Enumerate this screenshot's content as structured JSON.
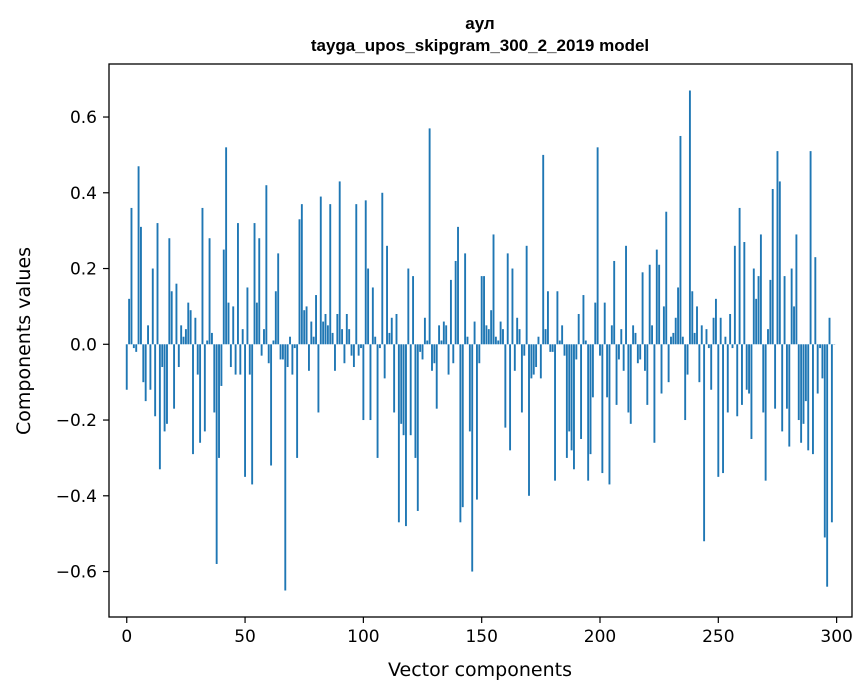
{
  "chart_data": {
    "type": "bar",
    "title": "аул",
    "subtitle": "tayga_upos_skipgram_300_2_2019 model",
    "xlabel": "Vector components",
    "ylabel": "Components values",
    "xlim": [
      -7.5,
      306.5
    ],
    "ylim": [
      -0.72,
      0.74
    ],
    "xticks": [
      0,
      50,
      100,
      150,
      200,
      250,
      300
    ],
    "xtick_labels": [
      "0",
      "50",
      "100",
      "150",
      "200",
      "250",
      "300"
    ],
    "yticks": [
      -0.6,
      -0.4,
      -0.2,
      0.0,
      0.2,
      0.4,
      0.6
    ],
    "ytick_labels": [
      "−0.6",
      "−0.4",
      "−0.2",
      "0.0",
      "0.2",
      "0.4",
      "0.6"
    ],
    "grid": false,
    "bar_color": "#1f77b4",
    "values": [
      -0.12,
      0.12,
      0.36,
      -0.01,
      -0.02,
      0.47,
      0.31,
      -0.1,
      -0.15,
      0.05,
      -0.12,
      0.2,
      -0.19,
      0.32,
      -0.33,
      -0.06,
      -0.23,
      -0.21,
      0.28,
      0.14,
      -0.17,
      0.16,
      -0.06,
      0.05,
      0.02,
      0.04,
      0.11,
      0.09,
      -0.29,
      0.07,
      -0.08,
      -0.26,
      0.36,
      -0.23,
      0.01,
      0.28,
      0.03,
      -0.18,
      -0.58,
      -0.3,
      -0.11,
      0.25,
      0.52,
      0.11,
      -0.06,
      0.1,
      -0.08,
      0.32,
      -0.08,
      0.04,
      -0.35,
      0.15,
      -0.08,
      -0.37,
      0.32,
      0.11,
      0.28,
      -0.03,
      0.04,
      0.42,
      -0.05,
      -0.32,
      0.01,
      0.14,
      0.24,
      -0.04,
      -0.04,
      -0.65,
      -0.06,
      0.02,
      -0.08,
      -0.01,
      -0.3,
      0.33,
      0.37,
      0.09,
      0.1,
      -0.07,
      0.06,
      0.02,
      0.13,
      -0.18,
      0.39,
      0.06,
      0.08,
      0.05,
      0.37,
      0.03,
      -0.07,
      0.08,
      0.43,
      0.04,
      -0.05,
      0.08,
      0.04,
      -0.03,
      -0.06,
      0.37,
      -0.03,
      -0.01,
      -0.2,
      0.38,
      0.2,
      -0.2,
      0.15,
      0.02,
      -0.3,
      -0.01,
      0.4,
      -0.09,
      0.26,
      0.03,
      0.07,
      -0.18,
      0.08,
      -0.47,
      -0.21,
      -0.24,
      -0.48,
      0.2,
      -0.24,
      0.18,
      -0.3,
      -0.44,
      -0.02,
      -0.04,
      0.07,
      0.01,
      0.57,
      -0.07,
      -0.05,
      -0.17,
      0.05,
      0.01,
      0.06,
      0.05,
      -0.08,
      0.17,
      -0.05,
      0.22,
      0.31,
      -0.47,
      -0.43,
      0.24,
      0.02,
      -0.23,
      -0.6,
      0.06,
      -0.41,
      -0.05,
      0.18,
      0.18,
      0.05,
      0.04,
      0.09,
      0.29,
      0.02,
      0.01,
      0.06,
      0.04,
      -0.22,
      0.24,
      -0.28,
      0.2,
      -0.07,
      0.07,
      0.04,
      -0.18,
      -0.03,
      0.26,
      -0.4,
      -0.09,
      -0.08,
      -0.06,
      0.02,
      -0.09,
      0.5,
      0.04,
      0.14,
      -0.02,
      -0.02,
      -0.36,
      0.14,
      0.01,
      0.05,
      -0.03,
      -0.3,
      -0.23,
      -0.28,
      -0.33,
      -0.04,
      0.08,
      -0.25,
      0.13,
      0.01,
      -0.36,
      -0.29,
      -0.14,
      0.11,
      0.52,
      -0.03,
      -0.34,
      0.11,
      -0.14,
      -0.37,
      0.05,
      0.22,
      -0.16,
      -0.04,
      0.04,
      -0.07,
      0.26,
      -0.18,
      -0.21,
      0.05,
      0.03,
      -0.05,
      -0.04,
      0.19,
      -0.07,
      -0.16,
      0.21,
      0.05,
      -0.26,
      0.25,
      0.21,
      -0.13,
      0.1,
      0.35,
      -0.1,
      0.02,
      0.03,
      0.07,
      0.15,
      0.55,
      0.02,
      -0.2,
      -0.08,
      0.67,
      0.14,
      0.03,
      0.1,
      -0.1,
      0.05,
      -0.52,
      0.04,
      -0.01,
      -0.12,
      0.07,
      0.12,
      -0.35,
      0.07,
      -0.34,
      0.02,
      -0.18,
      0.08,
      -0.01,
      0.26,
      -0.19,
      0.36,
      -0.16,
      0.27,
      -0.12,
      -0.13,
      -0.25,
      0.2,
      0.12,
      0.18,
      0.29,
      -0.18,
      -0.36,
      0.04,
      0.17,
      0.41,
      -0.17,
      0.51,
      0.43,
      -0.23,
      0.18,
      -0.17,
      -0.27,
      0.2,
      0.1,
      0.29,
      -0.2,
      -0.26,
      -0.21,
      -0.15,
      -0.28,
      0.51,
      -0.29,
      0.23,
      -0.13,
      -0.01,
      -0.09,
      -0.51,
      -0.64,
      0.07,
      -0.47,
      0.0
    ]
  }
}
